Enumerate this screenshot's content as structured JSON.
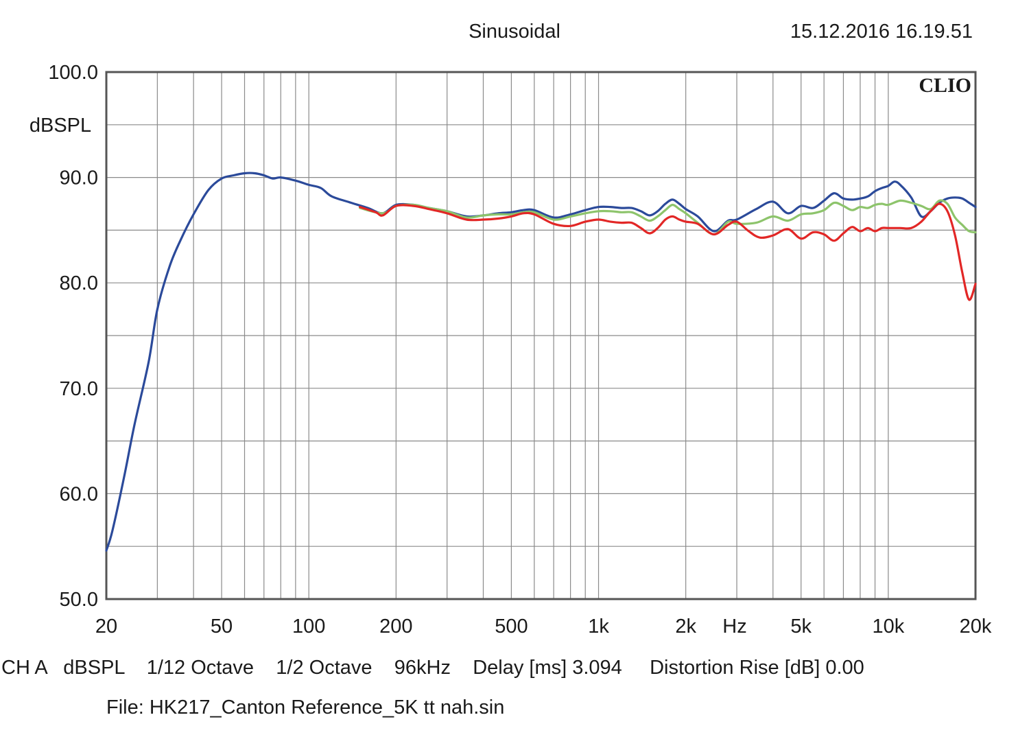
{
  "header": {
    "title": "Sinusoidal",
    "timestamp": "15.12.2016 16.19.51",
    "brand": "CLIO"
  },
  "chart_data": {
    "type": "line",
    "ylabel": "dBSPL",
    "xlabel": "Hz",
    "xscale": "log",
    "xlim": [
      20,
      20000
    ],
    "ylim": [
      50,
      100
    ],
    "grid": true,
    "y_ticks": [
      "100.0",
      "90.0",
      "80.0",
      "70.0",
      "60.0",
      "50.0"
    ],
    "x_ticks": [
      {
        "value": 20,
        "label": "20"
      },
      {
        "value": 50,
        "label": "50"
      },
      {
        "value": 100,
        "label": "100"
      },
      {
        "value": 200,
        "label": "200"
      },
      {
        "value": 500,
        "label": "500"
      },
      {
        "value": 1000,
        "label": "1k"
      },
      {
        "value": 2000,
        "label": "2k"
      },
      {
        "value": 5000,
        "label": "5k"
      },
      {
        "value": 10000,
        "label": "10k"
      },
      {
        "value": 20000,
        "label": "20k"
      }
    ],
    "series": [
      {
        "color": "#2b4a9a",
        "x": [
          20,
          21,
          23,
          25,
          28,
          30,
          33,
          36,
          40,
          45,
          50,
          55,
          60,
          65,
          70,
          75,
          80,
          90,
          100,
          110,
          120,
          140,
          160,
          180,
          200,
          230,
          260,
          300,
          350,
          400,
          450,
          500,
          550,
          600,
          700,
          800,
          900,
          1000,
          1100,
          1200,
          1300,
          1400,
          1500,
          1600,
          1700,
          1800,
          1900,
          2000,
          2200,
          2500,
          2800,
          3000,
          3500,
          4000,
          4500,
          5000,
          5500,
          6000,
          6500,
          7000,
          7500,
          8000,
          8500,
          9000,
          9500,
          10000,
          10500,
          11000,
          12000,
          13000,
          14000,
          15000,
          16000,
          17000,
          18000,
          19000,
          20000
        ],
        "y": [
          54.6,
          56.5,
          61.5,
          66.5,
          72.5,
          77.5,
          81.5,
          84.0,
          86.5,
          88.8,
          89.9,
          90.2,
          90.4,
          90.4,
          90.2,
          89.9,
          90.0,
          89.7,
          89.3,
          89.0,
          88.2,
          87.6,
          87.1,
          86.6,
          87.4,
          87.4,
          87.1,
          86.8,
          86.3,
          86.4,
          86.6,
          86.7,
          86.9,
          86.9,
          86.2,
          86.5,
          86.9,
          87.2,
          87.2,
          87.1,
          87.1,
          86.8,
          86.4,
          86.8,
          87.5,
          87.9,
          87.5,
          87.0,
          86.3,
          84.9,
          85.9,
          86.0,
          87.0,
          87.7,
          86.6,
          87.3,
          87.1,
          87.8,
          88.5,
          88.0,
          87.9,
          88.0,
          88.2,
          88.7,
          89.0,
          89.2,
          89.6,
          89.3,
          88.1,
          86.3,
          86.8,
          87.6,
          88.0,
          88.1,
          88.0,
          87.6,
          87.2
        ]
      },
      {
        "color": "#8dc46b",
        "x": [
          150,
          180,
          200,
          230,
          260,
          300,
          350,
          400,
          450,
          500,
          550,
          600,
          700,
          800,
          900,
          1000,
          1100,
          1200,
          1300,
          1400,
          1500,
          1600,
          1700,
          1800,
          1900,
          2000,
          2200,
          2500,
          2800,
          3000,
          3500,
          4000,
          4500,
          5000,
          5500,
          6000,
          6500,
          7000,
          7500,
          8000,
          8500,
          9000,
          9500,
          10000,
          11000,
          12000,
          13000,
          14000,
          15000,
          16000,
          17000,
          18000,
          19000,
          20000
        ],
        "y": [
          87.1,
          86.6,
          87.3,
          87.4,
          87.1,
          86.8,
          86.2,
          86.4,
          86.5,
          86.5,
          86.7,
          86.7,
          86.0,
          86.3,
          86.6,
          86.8,
          86.8,
          86.7,
          86.7,
          86.3,
          85.9,
          86.3,
          86.9,
          87.4,
          87.0,
          86.6,
          85.7,
          84.6,
          85.8,
          85.6,
          85.7,
          86.3,
          85.9,
          86.5,
          86.6,
          86.9,
          87.6,
          87.3,
          86.9,
          87.2,
          87.1,
          87.4,
          87.5,
          87.4,
          87.8,
          87.6,
          87.3,
          87.0,
          87.8,
          87.5,
          86.2,
          85.5,
          84.9,
          84.8
        ]
      },
      {
        "color": "#e22726",
        "x": [
          150,
          170,
          180,
          200,
          230,
          260,
          300,
          350,
          400,
          450,
          500,
          550,
          600,
          700,
          800,
          900,
          1000,
          1100,
          1200,
          1300,
          1400,
          1500,
          1600,
          1700,
          1800,
          1900,
          2000,
          2200,
          2500,
          2800,
          3000,
          3300,
          3600,
          4000,
          4500,
          5000,
          5500,
          6000,
          6500,
          7000,
          7500,
          8000,
          8500,
          9000,
          9500,
          10000,
          11000,
          12000,
          13000,
          14000,
          15000,
          16000,
          17000,
          18000,
          19000,
          20000
        ],
        "y": [
          87.2,
          86.7,
          86.4,
          87.3,
          87.3,
          87.0,
          86.6,
          86.0,
          86.0,
          86.1,
          86.3,
          86.6,
          86.5,
          85.6,
          85.4,
          85.8,
          86.0,
          85.8,
          85.7,
          85.7,
          85.2,
          84.7,
          85.2,
          86.0,
          86.3,
          86.0,
          85.8,
          85.6,
          84.6,
          85.5,
          85.8,
          84.9,
          84.3,
          84.5,
          85.1,
          84.2,
          84.8,
          84.6,
          84.0,
          84.7,
          85.3,
          84.9,
          85.2,
          84.9,
          85.2,
          85.2,
          85.2,
          85.2,
          85.8,
          86.8,
          87.5,
          86.8,
          84.5,
          81.0,
          78.4,
          79.9
        ]
      }
    ]
  },
  "footer": {
    "info_line": "CH A   dBSPL    1/12 Octave    1/2 Octave    96kHz    Delay [ms] 3.094     Distortion Rise [dB] 0.00",
    "file_line": "File: HK217_Canton Reference_5K tt nah.sin"
  }
}
